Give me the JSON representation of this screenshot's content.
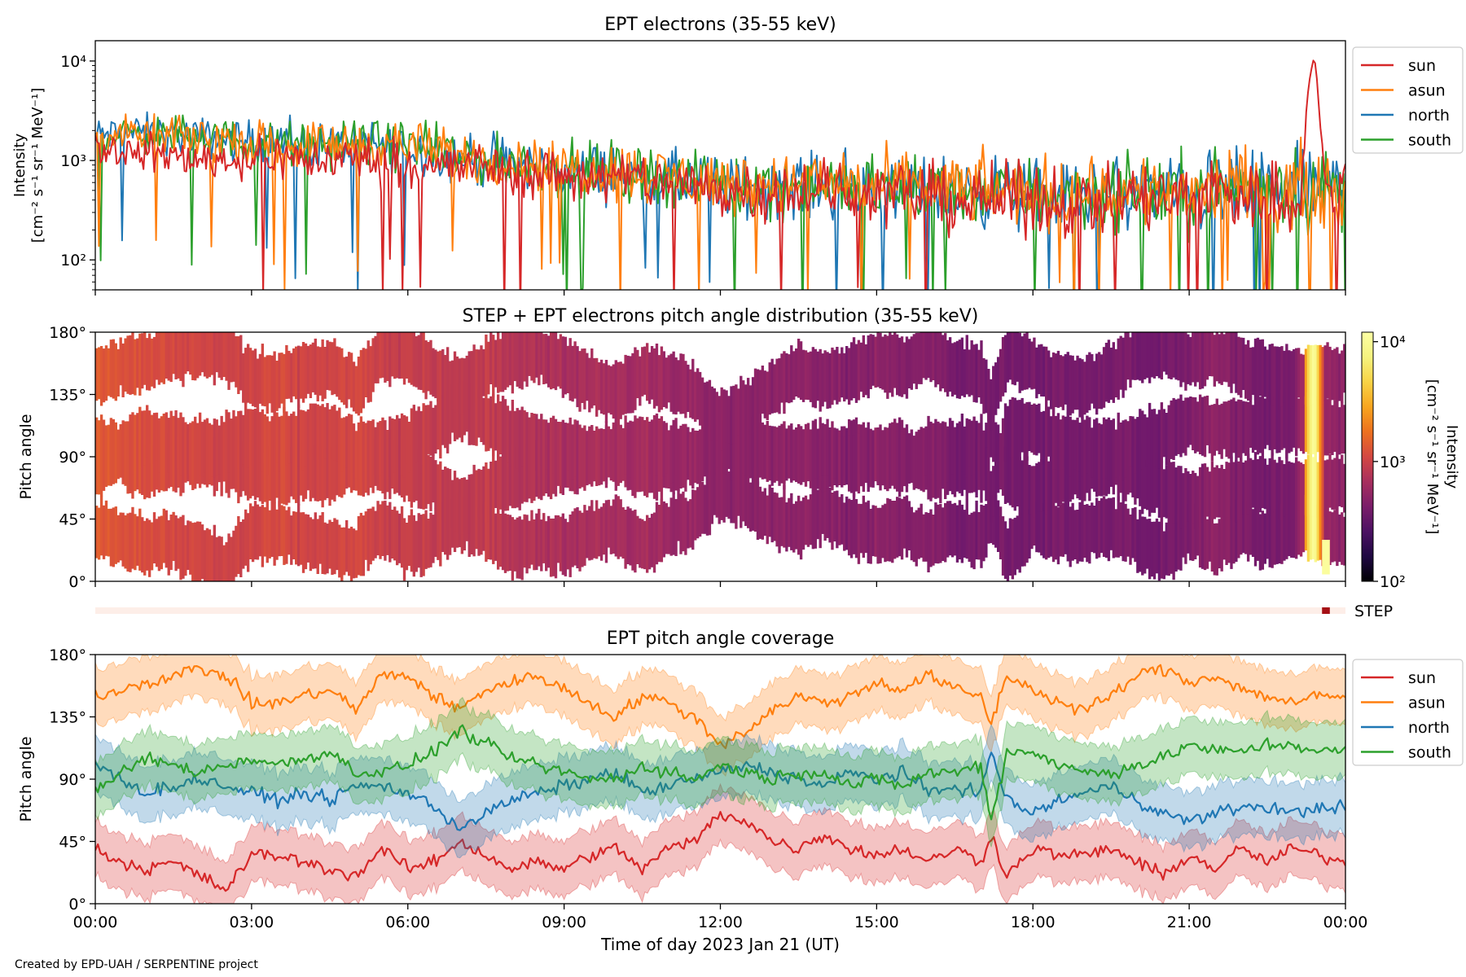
{
  "footer": "Created by EPD-UAH / SERPENTINE project",
  "colors": {
    "sun": "#d62728",
    "asun": "#ff7f0e",
    "north": "#1f77b4",
    "south": "#2ca02c"
  },
  "chart_data": [
    {
      "id": "panel-intensity",
      "type": "line",
      "title": "EPT electrons (35-55 keV)",
      "ylabel_lines": [
        "Intensity",
        "[cm⁻² s⁻¹ sr⁻¹ MeV⁻¹]"
      ],
      "yscale": "log",
      "ylim": [
        50,
        16000
      ],
      "yticks": [
        100,
        1000,
        10000
      ],
      "ytick_labels": [
        "10²",
        "10³",
        "10⁴"
      ],
      "xlim_hours": [
        0,
        24
      ],
      "legend": "outside-right",
      "series": [
        {
          "name": "sun",
          "color": "#d62728",
          "x_hours": [
            0,
            0.5,
            1,
            1.5,
            2,
            2.5,
            3,
            3.5,
            4,
            4.5,
            5,
            5.5,
            6,
            6.5,
            7,
            7.5,
            8,
            8.5,
            9,
            9.5,
            10,
            10.5,
            11,
            11.5,
            12,
            12.5,
            13,
            13.5,
            14,
            14.5,
            15,
            15.5,
            16,
            16.5,
            17,
            17.5,
            18,
            18.5,
            19,
            19.5,
            20,
            20.5,
            21,
            21.5,
            22,
            22.5,
            23,
            23.2,
            23.4,
            23.5,
            23.6,
            23.8,
            24
          ],
          "values": [
            1400,
            1250,
            1150,
            1100,
            1050,
            1000,
            1050,
            1100,
            1000,
            1000,
            1100,
            950,
            950,
            900,
            850,
            900,
            800,
            750,
            700,
            700,
            650,
            650,
            600,
            550,
            500,
            500,
            500,
            500,
            500,
            450,
            500,
            450,
            450,
            400,
            400,
            400,
            400,
            400,
            400,
            400,
            400,
            400,
            420,
            500,
            450,
            400,
            420,
            700,
            11000,
            2500,
            600,
            500,
            500
          ]
        },
        {
          "name": "asun",
          "color": "#ff7f0e",
          "x_hours": [
            0,
            1,
            2,
            3,
            4,
            5,
            6,
            7,
            8,
            9,
            10,
            11,
            12,
            13,
            14,
            15,
            16,
            17,
            18,
            19,
            20,
            21,
            22,
            23,
            24
          ],
          "values": [
            1700,
            1800,
            1700,
            1500,
            1450,
            1500,
            1400,
            1100,
            950,
            850,
            800,
            700,
            600,
            600,
            600,
            550,
            550,
            520,
            480,
            480,
            480,
            500,
            520,
            550,
            520
          ]
        },
        {
          "name": "north",
          "color": "#1f77b4",
          "x_hours": [
            0,
            1,
            2,
            3,
            4,
            5,
            6,
            7,
            8,
            9,
            10,
            11,
            12,
            13,
            14,
            15,
            16,
            17,
            18,
            19,
            20,
            21,
            22,
            23,
            24
          ],
          "values": [
            1800,
            1900,
            1700,
            1550,
            1450,
            1450,
            1350,
            1050,
            900,
            800,
            750,
            650,
            550,
            550,
            550,
            500,
            500,
            480,
            450,
            450,
            450,
            480,
            500,
            520,
            500
          ]
        },
        {
          "name": "south",
          "color": "#2ca02c",
          "x_hours": [
            0,
            1,
            2,
            3,
            4,
            5,
            6,
            7,
            8,
            9,
            10,
            11,
            12,
            13,
            14,
            15,
            16,
            17,
            18,
            19,
            20,
            21,
            22,
            23,
            24
          ],
          "values": [
            1750,
            1850,
            1750,
            1500,
            1450,
            1500,
            1400,
            1100,
            920,
            820,
            780,
            680,
            580,
            580,
            560,
            520,
            520,
            500,
            470,
            470,
            470,
            490,
            510,
            530,
            510
          ]
        }
      ]
    },
    {
      "id": "panel-pad",
      "type": "heatmap",
      "title": "STEP + EPT electrons pitch angle distribution (35-55 keV)",
      "ylabel": "Pitch angle",
      "ylim": [
        0,
        180
      ],
      "yticks": [
        0,
        45,
        90,
        135,
        180
      ],
      "ytick_labels": [
        "0°",
        "45°",
        "90°",
        "135°",
        "180°"
      ],
      "colorbar": {
        "label_lines": [
          "Intensity",
          "[cm⁻² s⁻¹ sr⁻¹ MeV⁻¹]"
        ],
        "scale": "log",
        "range": [
          100,
          12000
        ],
        "ticks": [
          100,
          1000,
          10000
        ],
        "tick_labels": [
          "10²",
          "10³",
          "10⁴"
        ]
      },
      "step_label": "STEP",
      "step_active_hours": [
        23.55,
        23.7
      ]
    },
    {
      "id": "panel-coverage",
      "type": "area",
      "title": "EPT pitch angle coverage",
      "ylabel": "Pitch angle",
      "xlabel": "Time of day 2023 Jan 21 (UT)",
      "ylim": [
        0,
        180
      ],
      "yticks": [
        0,
        45,
        90,
        135,
        180
      ],
      "ytick_labels": [
        "0°",
        "45°",
        "90°",
        "135°",
        "180°"
      ],
      "xticks_hours": [
        0,
        3,
        6,
        9,
        12,
        15,
        18,
        21,
        24
      ],
      "xtick_labels": [
        "00:00",
        "03:00",
        "06:00",
        "09:00",
        "12:00",
        "15:00",
        "18:00",
        "21:00",
        "00:00"
      ],
      "band_halfwidth_deg": 20,
      "legend": "outside-right",
      "series": [
        {
          "name": "sun",
          "color": "#d62728",
          "x_hours": [
            0,
            0.5,
            1,
            1.5,
            2,
            2.5,
            3,
            3.5,
            4,
            4.5,
            5,
            5.5,
            6,
            6.5,
            7,
            7.5,
            8,
            8.5,
            9,
            9.5,
            10,
            10.5,
            11,
            11.5,
            12,
            12.5,
            13,
            13.5,
            14,
            14.5,
            15,
            15.5,
            16,
            16.5,
            17,
            17.2,
            17.5,
            18,
            18.5,
            19,
            19.5,
            20,
            20.5,
            21,
            21.5,
            22,
            22.5,
            23,
            23.5,
            24
          ],
          "values": [
            40,
            30,
            25,
            30,
            20,
            10,
            35,
            35,
            30,
            25,
            20,
            40,
            25,
            30,
            45,
            35,
            25,
            30,
            25,
            35,
            40,
            25,
            40,
            45,
            65,
            60,
            45,
            40,
            50,
            40,
            35,
            40,
            30,
            40,
            30,
            50,
            20,
            40,
            35,
            35,
            40,
            30,
            20,
            35,
            25,
            40,
            30,
            40,
            35,
            30
          ]
        },
        {
          "name": "asun",
          "color": "#ff7f0e",
          "x_hours": [
            0,
            0.5,
            1,
            1.5,
            2,
            2.5,
            3,
            3.5,
            4,
            4.5,
            5,
            5.5,
            6,
            6.5,
            7,
            7.5,
            8,
            8.5,
            9,
            9.5,
            10,
            10.5,
            11,
            11.5,
            12,
            12.5,
            13,
            13.5,
            14,
            14.5,
            15,
            15.5,
            16,
            16.5,
            17,
            17.2,
            17.5,
            18,
            18.5,
            19,
            19.5,
            20,
            20.5,
            21,
            21.5,
            22,
            22.5,
            23,
            23.5,
            24
          ],
          "values": [
            150,
            155,
            160,
            165,
            170,
            165,
            145,
            145,
            150,
            155,
            140,
            165,
            165,
            150,
            140,
            155,
            160,
            165,
            155,
            145,
            135,
            150,
            145,
            135,
            115,
            125,
            140,
            150,
            145,
            150,
            160,
            155,
            165,
            155,
            150,
            130,
            165,
            155,
            145,
            140,
            150,
            165,
            170,
            160,
            165,
            155,
            150,
            145,
            150,
            150
          ]
        },
        {
          "name": "north",
          "color": "#1f77b4",
          "x_hours": [
            0,
            0.5,
            1,
            1.5,
            2,
            2.5,
            3,
            3.5,
            4,
            4.5,
            5,
            5.5,
            6,
            6.5,
            7,
            7.5,
            8,
            8.5,
            9,
            9.5,
            10,
            10.5,
            11,
            11.5,
            12,
            12.5,
            13,
            13.5,
            14,
            14.5,
            15,
            15.5,
            16,
            16.5,
            17,
            17.2,
            17.5,
            18,
            18.5,
            19,
            19.5,
            20,
            20.5,
            21,
            21.5,
            22,
            22.5,
            23,
            23.5,
            24
          ],
          "values": [
            100,
            90,
            80,
            85,
            90,
            85,
            80,
            75,
            80,
            75,
            85,
            85,
            80,
            70,
            55,
            65,
            75,
            80,
            85,
            90,
            95,
            80,
            85,
            90,
            95,
            100,
            95,
            90,
            85,
            95,
            90,
            95,
            80,
            85,
            80,
            110,
            75,
            65,
            75,
            80,
            85,
            75,
            65,
            60,
            65,
            70,
            70,
            65,
            70,
            70
          ]
        },
        {
          "name": "south",
          "color": "#2ca02c",
          "x_hours": [
            0,
            0.5,
            1,
            1.5,
            2,
            2.5,
            3,
            3.5,
            4,
            4.5,
            5,
            5.5,
            6,
            6.5,
            7,
            7.5,
            8,
            8.5,
            9,
            9.5,
            10,
            10.5,
            11,
            11.5,
            12,
            12.5,
            13,
            13.5,
            14,
            14.5,
            15,
            15.5,
            16,
            16.5,
            17,
            17.2,
            17.5,
            18,
            18.5,
            19,
            19.5,
            20,
            20.5,
            21,
            21.5,
            22,
            22.5,
            23,
            23.5,
            24
          ],
          "values": [
            80,
            95,
            105,
            100,
            95,
            100,
            105,
            100,
            105,
            110,
            95,
            95,
            100,
            110,
            125,
            115,
            105,
            100,
            95,
            90,
            90,
            100,
            95,
            90,
            100,
            95,
            90,
            95,
            95,
            85,
            90,
            85,
            95,
            95,
            100,
            60,
            110,
            110,
            100,
            95,
            95,
            100,
            105,
            115,
            110,
            110,
            115,
            115,
            110,
            110
          ]
        }
      ]
    }
  ]
}
